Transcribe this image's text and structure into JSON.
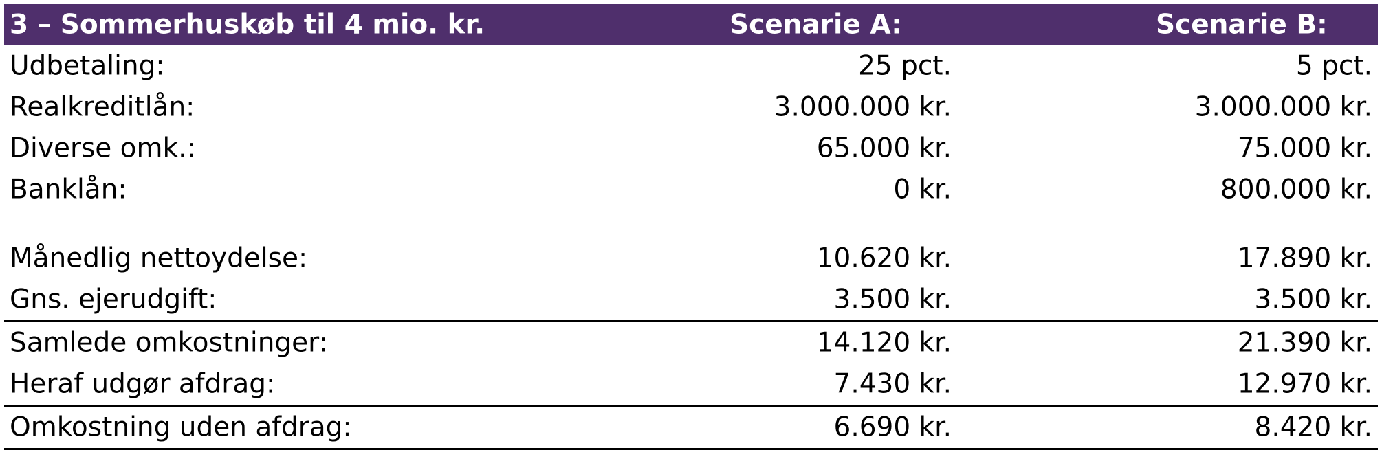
{
  "header": {
    "title": "3 – Sommerhuskøb til 4 mio. kr.",
    "scenario_a": "Scenarie A:",
    "scenario_b": "Scenarie B:",
    "bg_color": "#4f2f6c"
  },
  "rows": [
    {
      "label": "Udbetaling:",
      "a": "25 pct.",
      "b": "5 pct."
    },
    {
      "label": "Realkreditlån:",
      "a": "3.000.000 kr.",
      "b": "3.000.000 kr."
    },
    {
      "label": "Diverse omk.:",
      "a": "65.000 kr.",
      "b": "75.000 kr."
    },
    {
      "label": "Banklån:",
      "a": "0 kr.",
      "b": "800.000 kr."
    },
    {
      "label": "Månedlig nettoydelse:",
      "a": "10.620 kr.",
      "b": "17.890 kr."
    },
    {
      "label": "Gns. ejerudgift:",
      "a": "3.500 kr.",
      "b": "3.500 kr."
    },
    {
      "label": "Samlede omkostninger:",
      "a": "14.120 kr.",
      "b": "21.390 kr."
    },
    {
      "label": "Heraf udgør afdrag:",
      "a": "7.430 kr.",
      "b": "12.970 kr."
    },
    {
      "label": "Omkostning uden afdrag:",
      "a": "6.690 kr.",
      "b": "8.420 kr."
    }
  ]
}
